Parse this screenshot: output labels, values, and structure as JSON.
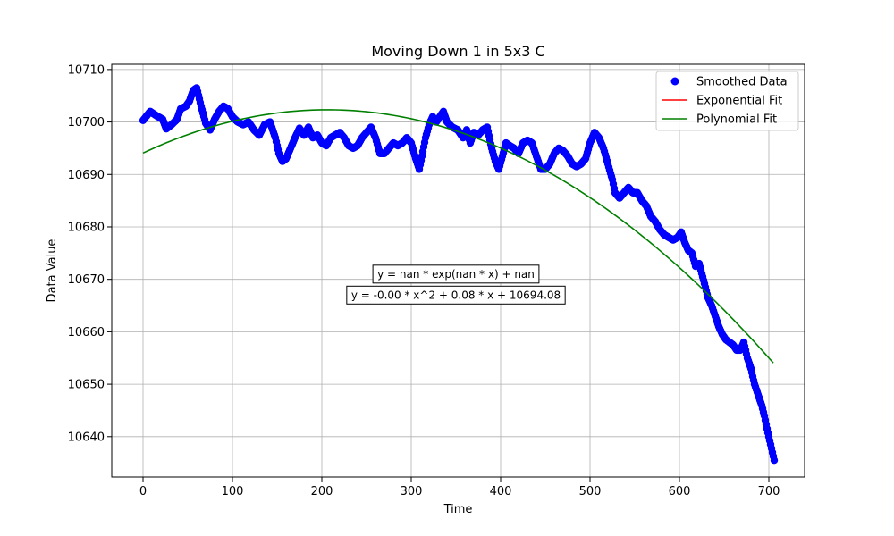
{
  "chart_data": {
    "type": "line",
    "title": "Moving Down 1 in 5x3 C",
    "xlabel": "Time",
    "ylabel": "Data Value",
    "xlim": [
      -35,
      740
    ],
    "ylim": [
      10632.3,
      10711.0
    ],
    "x_ticks": [
      0,
      100,
      200,
      300,
      400,
      500,
      600,
      700
    ],
    "y_ticks": [
      10640,
      10650,
      10660,
      10670,
      10680,
      10690,
      10700,
      10710
    ],
    "grid": true,
    "legend": {
      "placement": "top-right",
      "entries": [
        {
          "label": "Smoothed Data",
          "color": "#0000ff",
          "marker": "circle"
        },
        {
          "label": "Exponential Fit",
          "color": "#ff0000",
          "marker": "line"
        },
        {
          "label": "Polynomial Fit",
          "color": "#008000",
          "marker": "line"
        }
      ]
    },
    "annotations": [
      {
        "text": "y = nan * exp(nan * x) + nan",
        "x": 350,
        "y": 10671
      },
      {
        "text": "y = -0.00 * x^2 + 0.08 * x + 10694.08",
        "x": 350,
        "y": 10667
      }
    ],
    "series": [
      {
        "name": "Smoothed Data",
        "kind": "scatter",
        "color": "#0000ff",
        "points": [
          [
            0,
            10700.3
          ],
          [
            8,
            10702
          ],
          [
            15,
            10701.2
          ],
          [
            22,
            10700.5
          ],
          [
            26,
            10698.7
          ],
          [
            32,
            10699.5
          ],
          [
            38,
            10700.5
          ],
          [
            42,
            10702.5
          ],
          [
            48,
            10703
          ],
          [
            52,
            10704
          ],
          [
            56,
            10706
          ],
          [
            60,
            10706.5
          ],
          [
            65,
            10703
          ],
          [
            70,
            10699.8
          ],
          [
            75,
            10698.5
          ],
          [
            80,
            10700.5
          ],
          [
            85,
            10702
          ],
          [
            90,
            10703
          ],
          [
            95,
            10702.5
          ],
          [
            100,
            10701
          ],
          [
            106,
            10700
          ],
          [
            112,
            10699.5
          ],
          [
            118,
            10700
          ],
          [
            124,
            10698.5
          ],
          [
            130,
            10697.5
          ],
          [
            136,
            10699.5
          ],
          [
            142,
            10700
          ],
          [
            148,
            10697
          ],
          [
            152,
            10694
          ],
          [
            156,
            10692.5
          ],
          [
            160,
            10693
          ],
          [
            165,
            10695
          ],
          [
            170,
            10697
          ],
          [
            175,
            10698.8
          ],
          [
            180,
            10697.5
          ],
          [
            185,
            10699
          ],
          [
            190,
            10697
          ],
          [
            195,
            10697.5
          ],
          [
            200,
            10696
          ],
          [
            205,
            10695.5
          ],
          [
            210,
            10697
          ],
          [
            215,
            10697.5
          ],
          [
            220,
            10698
          ],
          [
            225,
            10697
          ],
          [
            230,
            10695.5
          ],
          [
            235,
            10695
          ],
          [
            240,
            10695.5
          ],
          [
            245,
            10697
          ],
          [
            250,
            10698
          ],
          [
            255,
            10699
          ],
          [
            260,
            10697
          ],
          [
            265,
            10694
          ],
          [
            270,
            10694
          ],
          [
            275,
            10695
          ],
          [
            280,
            10696
          ],
          [
            285,
            10695.5
          ],
          [
            290,
            10696
          ],
          [
            295,
            10697
          ],
          [
            300,
            10696
          ],
          [
            305,
            10693
          ],
          [
            309,
            10691
          ],
          [
            312,
            10693.5
          ],
          [
            316,
            10697
          ],
          [
            320,
            10699.5
          ],
          [
            324,
            10701
          ],
          [
            328,
            10700
          ],
          [
            332,
            10701
          ],
          [
            336,
            10702
          ],
          [
            340,
            10700
          ],
          [
            346,
            10699
          ],
          [
            352,
            10698.5
          ],
          [
            358,
            10697
          ],
          [
            362,
            10698.5
          ],
          [
            366,
            10696
          ],
          [
            370,
            10698
          ],
          [
            375,
            10697.5
          ],
          [
            380,
            10698.5
          ],
          [
            385,
            10699
          ],
          [
            390,
            10695
          ],
          [
            394,
            10692.5
          ],
          [
            398,
            10691
          ],
          [
            402,
            10693.5
          ],
          [
            406,
            10696
          ],
          [
            410,
            10695.5
          ],
          [
            415,
            10695
          ],
          [
            420,
            10694
          ],
          [
            425,
            10696
          ],
          [
            430,
            10696.5
          ],
          [
            435,
            10696
          ],
          [
            440,
            10693.5
          ],
          [
            445,
            10691
          ],
          [
            450,
            10691
          ],
          [
            455,
            10692
          ],
          [
            460,
            10694
          ],
          [
            465,
            10695
          ],
          [
            470,
            10694.5
          ],
          [
            475,
            10693.5
          ],
          [
            480,
            10692
          ],
          [
            485,
            10691.5
          ],
          [
            490,
            10692
          ],
          [
            495,
            10693
          ],
          [
            500,
            10696
          ],
          [
            505,
            10698
          ],
          [
            510,
            10697
          ],
          [
            515,
            10695
          ],
          [
            520,
            10692
          ],
          [
            525,
            10689
          ],
          [
            528,
            10686.5
          ],
          [
            533,
            10685.5
          ],
          [
            538,
            10686.5
          ],
          [
            543,
            10687.5
          ],
          [
            548,
            10686.5
          ],
          [
            553,
            10686.5
          ],
          [
            558,
            10685
          ],
          [
            563,
            10684
          ],
          [
            568,
            10682
          ],
          [
            573,
            10681
          ],
          [
            578,
            10679.5
          ],
          [
            583,
            10678.5
          ],
          [
            588,
            10678
          ],
          [
            593,
            10677.5
          ],
          [
            598,
            10678
          ],
          [
            602,
            10679
          ],
          [
            606,
            10677
          ],
          [
            610,
            10675.5
          ],
          [
            614,
            10675
          ],
          [
            618,
            10672.5
          ],
          [
            622,
            10673
          ],
          [
            626,
            10670.5
          ],
          [
            629,
            10668.5
          ],
          [
            632,
            10666.5
          ],
          [
            636,
            10665
          ],
          [
            640,
            10663
          ],
          [
            644,
            10661
          ],
          [
            648,
            10659.5
          ],
          [
            652,
            10658.5
          ],
          [
            656,
            10658
          ],
          [
            660,
            10657.5
          ],
          [
            664,
            10656.5
          ],
          [
            668,
            10656.5
          ],
          [
            672,
            10658
          ],
          [
            676,
            10655
          ],
          [
            680,
            10653
          ],
          [
            684,
            10650
          ],
          [
            688,
            10648
          ],
          [
            692,
            10646
          ],
          [
            695,
            10644
          ],
          [
            698,
            10641.5
          ],
          [
            700,
            10640
          ],
          [
            702,
            10638.5
          ],
          [
            704,
            10637
          ],
          [
            706,
            10635.5
          ]
        ]
      },
      {
        "name": "Exponential Fit",
        "kind": "line",
        "color": "#ff0000",
        "points": []
      },
      {
        "name": "Polynomial Fit",
        "kind": "line",
        "color": "#008000",
        "poly_coefficients": [
          -0.000194,
          0.08,
          10694.08
        ],
        "x_range": [
          0,
          705
        ]
      }
    ]
  }
}
